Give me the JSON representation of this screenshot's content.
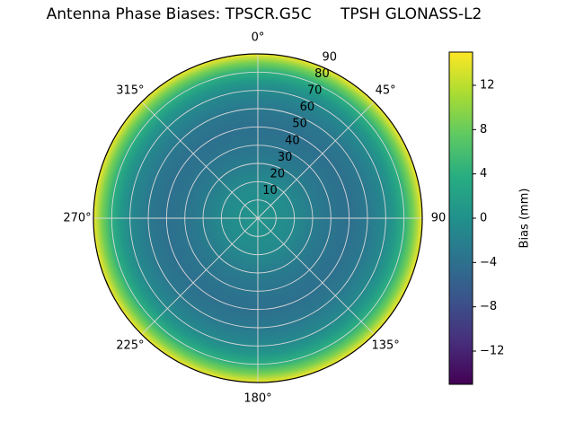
{
  "title": "Antenna Phase Biases: TPSCR.G5C      TPSH GLONASS-L2",
  "chart_data": {
    "type": "heatmap",
    "projection": "polar",
    "title": "Antenna Phase Biases: TPSCR.G5C      TPSH GLONASS-L2",
    "antenna": "TPSCR.G5C",
    "radome": "TPSH",
    "signal": "GLONASS-L2",
    "theta_zero_location": "top",
    "theta_direction": "clockwise",
    "theta_ticks_deg": [
      0,
      45,
      90,
      135,
      180,
      225,
      270,
      315
    ],
    "theta_tick_labels": [
      "0°",
      "45°",
      "90",
      "135°",
      "180°",
      "225°",
      "270°",
      "315°"
    ],
    "r_ticks": [
      10,
      20,
      30,
      40,
      50,
      60,
      70,
      80,
      90
    ],
    "r_max": 90,
    "r_label_angle_deg": 24,
    "grid": true,
    "azimuthal_symmetry": true,
    "radial_profile": {
      "zenith_deg": [
        0,
        10,
        20,
        30,
        40,
        50,
        60,
        70,
        75,
        80,
        85,
        90
      ],
      "bias_mm": [
        0.5,
        -0.2,
        -1.0,
        -2.5,
        -3.5,
        -4.0,
        -3.0,
        -1.0,
        1.0,
        4.0,
        8.5,
        14.5
      ]
    },
    "colorbar": {
      "label": "Bias (mm)",
      "ticks": [
        -12,
        -8,
        -4,
        0,
        4,
        8,
        12
      ],
      "vmin": -15,
      "vmax": 15,
      "colormap": "viridis",
      "position": "right"
    },
    "colormap": {
      "name": "viridis",
      "anchors": [
        [
          0.0,
          "#440154"
        ],
        [
          0.125,
          "#472d7b"
        ],
        [
          0.25,
          "#3b528b"
        ],
        [
          0.375,
          "#2c728e"
        ],
        [
          0.5,
          "#21918c"
        ],
        [
          0.625,
          "#27ad81"
        ],
        [
          0.75,
          "#5ec962"
        ],
        [
          0.875,
          "#aadc32"
        ],
        [
          1.0,
          "#fde725"
        ]
      ]
    },
    "style": {
      "grid_color": "#d8d8d8",
      "spine_color": "#000000",
      "background": "#ffffff",
      "text_color": "#000000"
    }
  }
}
